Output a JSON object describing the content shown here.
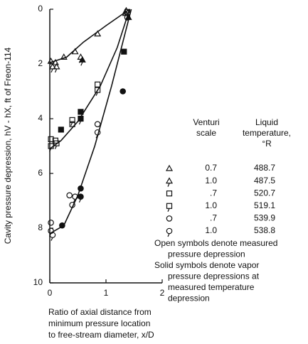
{
  "chart_data": {
    "type": "scatter",
    "ylabel": "Cavity pressure depression, hV - hX, ft of Freon-114",
    "xlabel": [
      "Ratio of axial distance from",
      "minimum pressure location",
      "to free-stream diameter, x/D"
    ],
    "xlim": [
      0,
      2
    ],
    "xticks": [
      0,
      1,
      2
    ],
    "ylim": [
      0,
      10
    ],
    "yticks": [
      0,
      2,
      4,
      6,
      8,
      10
    ],
    "y_inverted": true,
    "color": "#111111",
    "legend_headers": [
      [
        "Venturi",
        "scale"
      ],
      [
        "Liquid",
        "temperature,",
        "°R"
      ]
    ],
    "series": [
      {
        "marker": "triangle",
        "tail": false,
        "scale": "0.7",
        "temperature": "488.7",
        "x": [
          0.02,
          0.1,
          0.25,
          0.45,
          0.85,
          1.35
        ],
        "values": [
          1.9,
          1.95,
          1.75,
          1.55,
          0.9,
          0.15
        ],
        "filled_x": [
          1.4
        ],
        "filled_values": [
          0.3
        ]
      },
      {
        "marker": "triangle",
        "tail": true,
        "scale": "1.0",
        "temperature": "487.5",
        "x": [
          0.05,
          0.12,
          0.55,
          1.36
        ],
        "values": [
          2.1,
          2.1,
          1.75,
          0.05
        ],
        "filled_x": [
          0.58
        ],
        "filled_values": [
          1.85
        ]
      },
      {
        "marker": "square",
        "tail": false,
        "scale": ".7",
        "temperature": "520.7",
        "x": [
          0.02,
          0.1,
          0.4,
          0.85,
          1.38
        ],
        "values": [
          4.75,
          4.8,
          4.2,
          2.75,
          0.1
        ],
        "filled_x": [
          0.2,
          0.55,
          1.32
        ],
        "filled_values": [
          4.4,
          3.75,
          1.55
        ]
      },
      {
        "marker": "square",
        "tail": true,
        "scale": "1.0",
        "temperature": "519.1",
        "x": [
          0.02,
          0.12,
          0.4,
          0.85
        ],
        "values": [
          5.0,
          4.9,
          4.05,
          2.95
        ],
        "filled_x": [
          0.55
        ],
        "filled_values": [
          4.0
        ]
      },
      {
        "marker": "circle",
        "tail": false,
        "scale": ".7",
        "temperature": "539.9",
        "x": [
          0.02,
          0.35,
          0.4,
          0.85,
          1.38
        ],
        "values": [
          7.8,
          6.8,
          7.15,
          4.2,
          0.3
        ],
        "filled_x": [
          0.22,
          0.55,
          1.3
        ],
        "filled_values": [
          7.9,
          6.55,
          3.0
        ]
      },
      {
        "marker": "circle",
        "tail": true,
        "scale": "1.0",
        "temperature": "538.8",
        "x": [
          0.02,
          0.05,
          0.45,
          0.85
        ],
        "values": [
          8.1,
          8.25,
          6.85,
          4.5
        ],
        "filled_x": [
          0.55
        ],
        "filled_values": [
          6.85
        ]
      }
    ],
    "curves": [
      {
        "x": [
          0,
          0.3,
          0.6,
          1.0,
          1.42
        ],
        "values": [
          1.95,
          1.75,
          1.2,
          0.6,
          0
        ]
      },
      {
        "x": [
          0,
          0.2,
          0.5,
          0.9,
          1.2,
          1.42
        ],
        "values": [
          5.1,
          4.8,
          4.1,
          2.8,
          1.4,
          0
        ]
      },
      {
        "x": [
          0,
          0.25,
          0.5,
          0.8,
          1.1,
          1.45
        ],
        "values": [
          8.2,
          7.9,
          6.8,
          5.0,
          2.8,
          0
        ]
      }
    ],
    "notes": [
      "Open symbols denote measured",
      "pressure depression",
      "Solid symbols denote vapor",
      "pressure depressions at",
      "measured temperature",
      "depression"
    ]
  }
}
